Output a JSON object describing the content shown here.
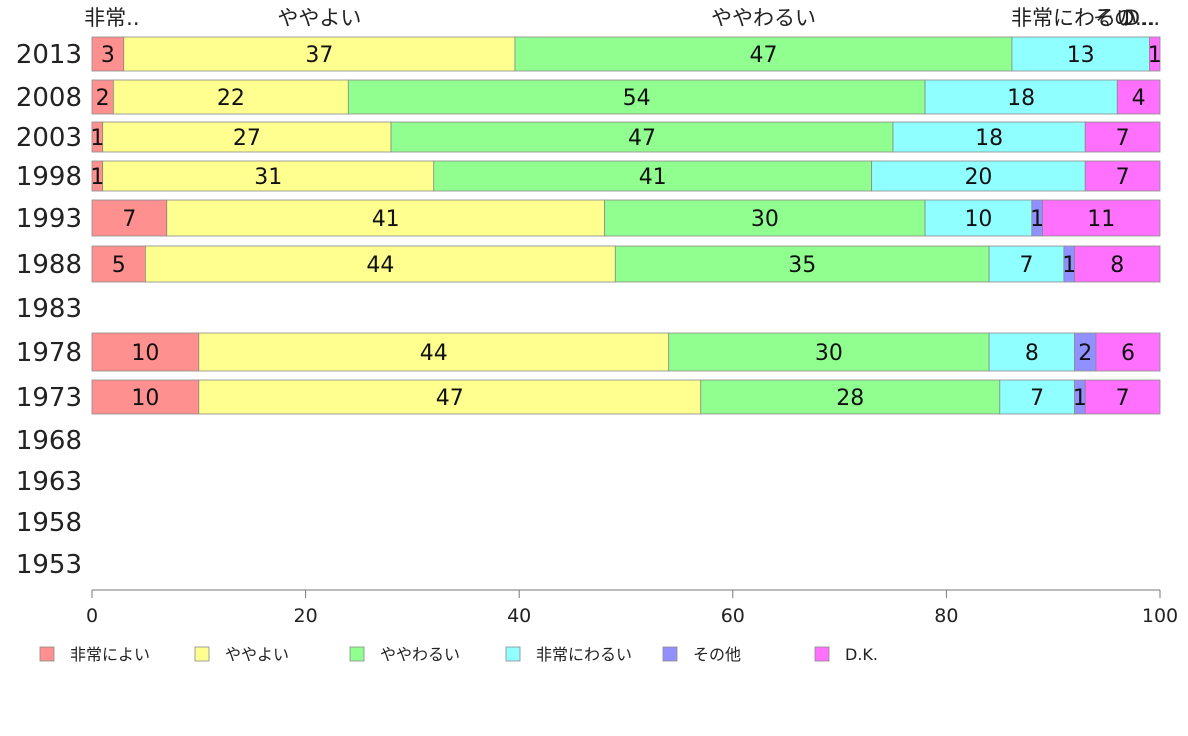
{
  "chart_data": {
    "type": "bar",
    "orientation": "horizontal",
    "stacked": true,
    "categories": [
      "2013",
      "2008",
      "2003",
      "1998",
      "1993",
      "1988",
      "1983",
      "1978",
      "1973",
      "1968",
      "1963",
      "1958",
      "1953"
    ],
    "series": [
      {
        "name": "非常によい",
        "color": "#ff9090",
        "values": [
          3,
          2,
          1,
          1,
          7,
          5,
          null,
          10,
          10,
          null,
          null,
          null,
          null
        ]
      },
      {
        "name": "ややよい",
        "color": "#ffff90",
        "values": [
          37,
          22,
          27,
          31,
          41,
          44,
          null,
          44,
          47,
          null,
          null,
          null,
          null
        ]
      },
      {
        "name": "ややわるい",
        "color": "#90ff90",
        "values": [
          47,
          54,
          47,
          41,
          30,
          35,
          null,
          30,
          28,
          null,
          null,
          null,
          null
        ]
      },
      {
        "name": "非常にわるい",
        "color": "#90ffff",
        "values": [
          13,
          18,
          18,
          20,
          10,
          7,
          null,
          8,
          7,
          null,
          null,
          null,
          null
        ]
      },
      {
        "name": "その他",
        "color": "#9090ff",
        "values": [
          0,
          0,
          0,
          0,
          1,
          1,
          null,
          2,
          1,
          null,
          null,
          null,
          null
        ]
      },
      {
        "name": "D.K.",
        "color": "#ff70ff",
        "values": [
          1,
          4,
          7,
          7,
          11,
          8,
          null,
          6,
          7,
          null,
          null,
          null,
          null
        ]
      }
    ],
    "data_labels": [
      [
        "3",
        "37",
        "47",
        "13",
        "",
        "1"
      ],
      [
        "2",
        "22",
        "54",
        "18",
        "",
        "4"
      ],
      [
        "1",
        "27",
        "47",
        "18",
        "",
        "7"
      ],
      [
        "1",
        "31",
        "41",
        "20",
        "",
        "7"
      ],
      [
        "7",
        "41",
        "30",
        "10",
        "1",
        "11"
      ],
      [
        "5",
        "44",
        "35",
        "7",
        "1",
        "8"
      ],
      [
        "",
        "",
        "",
        "",
        "",
        ""
      ],
      [
        "10",
        "44",
        "30",
        "8",
        "2",
        "6"
      ],
      [
        "10",
        "47",
        "28",
        "7",
        "1",
        "7"
      ],
      [
        "",
        "",
        "",
        "",
        "",
        ""
      ],
      [
        "",
        "",
        "",
        "",
        "",
        ""
      ],
      [
        "",
        "",
        "",
        "",
        "",
        ""
      ],
      [
        "",
        "",
        "",
        "",
        "",
        ""
      ]
    ],
    "top_labels": [
      "非常..",
      "ややよい",
      "ややわるい",
      "非常にわるい",
      "その...",
      "D..."
    ],
    "x_ticks": [
      0,
      20,
      40,
      60,
      80,
      100
    ],
    "xlim": [
      0,
      100
    ],
    "legend_position": "bottom",
    "grid": false
  }
}
